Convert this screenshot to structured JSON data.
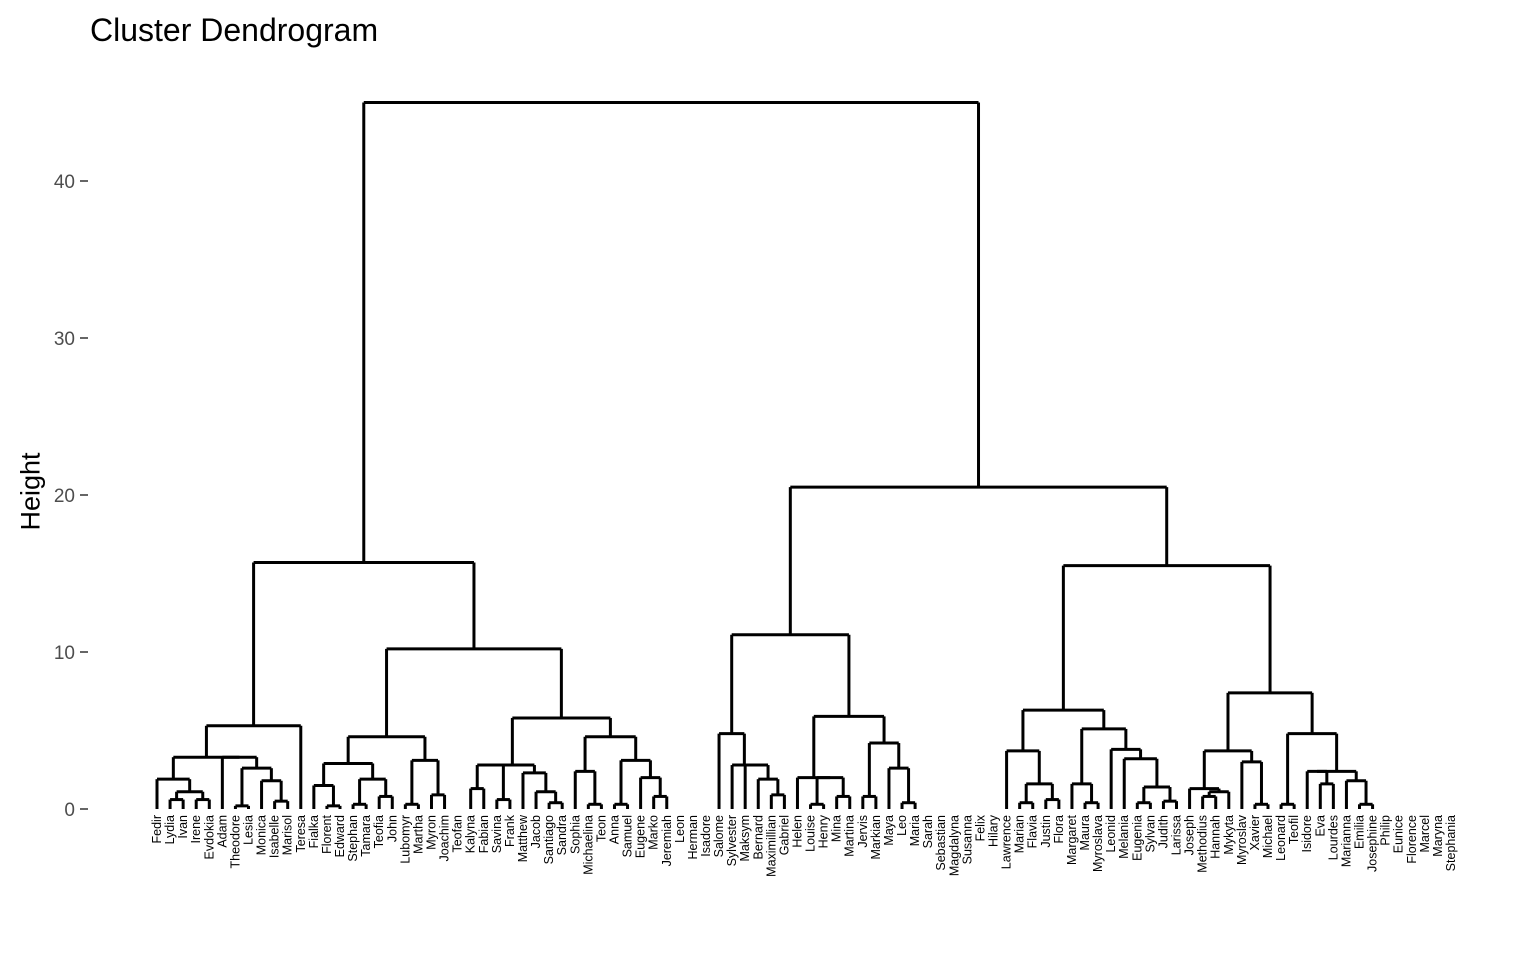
{
  "chart_data": {
    "type": "dendrogram",
    "title": "Cluster Dendrogram",
    "ylabel": "Height",
    "ylim": [
      0,
      45
    ],
    "yticks": [
      0,
      10,
      20,
      30,
      40
    ],
    "leaves": [
      "Fedir",
      "Lydia",
      "Ivan",
      "Irene",
      "Evdokia",
      "Adam",
      "Theodore",
      "Lesia",
      "Monica",
      "Isabelle",
      "Marisol",
      "Teresa",
      "Fialka",
      "Florent",
      "Edward",
      "Stephan",
      "Tamara",
      "Teofia",
      "John",
      "Lubomyr",
      "Martha",
      "Myron",
      "Joachim",
      "Teofan",
      "Kalyna",
      "Fabian",
      "Savina",
      "Frank",
      "Matthew",
      "Jacob",
      "Santiago",
      "Sandra",
      "Sophia",
      "Michaelina",
      "Teon",
      "Anna",
      "Samuel",
      "Eugene",
      "Marko",
      "Jeremiah",
      "Leon",
      "Herman",
      "Isadore",
      "Salome",
      "Sylvester",
      "Maksym",
      "Bernard",
      "Maximillian",
      "Gabriel",
      "Helen",
      "Louise",
      "Henry",
      "Mina",
      "Martina",
      "Jervis",
      "Markian",
      "Maya",
      "Leo",
      "Maria",
      "Sarah",
      "Sebastian",
      "Magdalyna",
      "Susanna",
      "Felix",
      "Hilary",
      "Lawrence",
      "Marian",
      "Flavia",
      "Justin",
      "Flora",
      "Margaret",
      "Maura",
      "Myroslava",
      "Leonid",
      "Melania",
      "Eugenia",
      "Sylvan",
      "Judith",
      "Larissa",
      "Joseph",
      "Methodius",
      "Hannah",
      "Mykyta",
      "Myroslav",
      "Xavier",
      "Michael",
      "Leonard",
      "Teofil",
      "Isidore",
      "Eva",
      "Lourdes",
      "Marianna",
      "Emilia",
      "Josephine",
      "Philip",
      "Eunice",
      "Florence",
      "Marcel",
      "Maryna",
      "Stephania"
    ],
    "merge_heights": {
      "root": 45,
      "left_main": 15.7,
      "right_main": 20.5,
      "right_a": 11.1,
      "right_b": 15.5,
      "left_b": 10.2,
      "left_a": 5.3
    }
  }
}
